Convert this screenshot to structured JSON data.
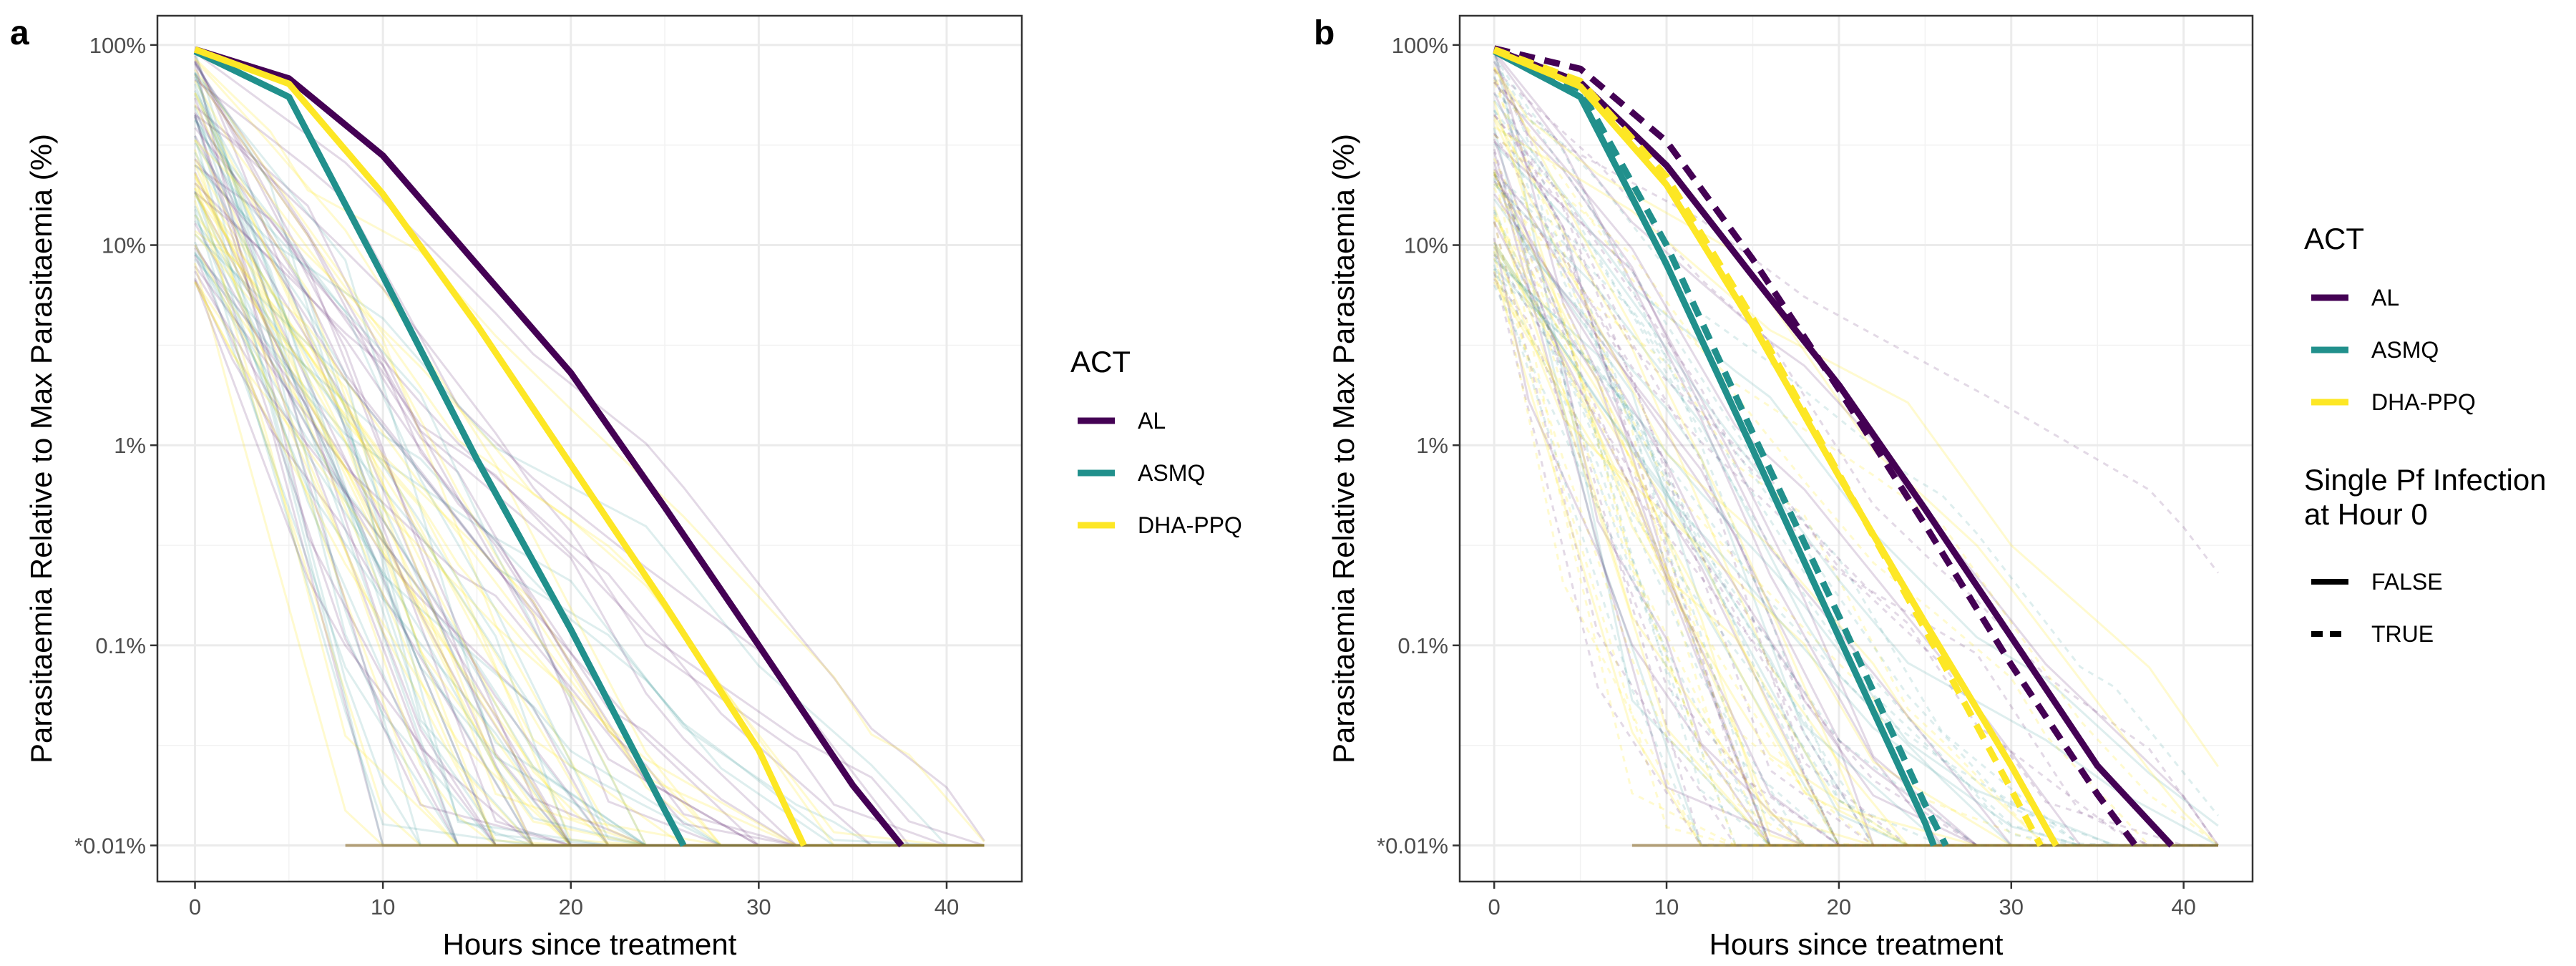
{
  "chart_data": [
    {
      "panel_label": "a",
      "type": "line",
      "xlabel": "Hours since treatment",
      "ylabel": "Parasitaemia Relative to Max Parasitaemia (%)",
      "x_ticks": [
        0,
        10,
        20,
        30,
        40
      ],
      "x_tick_labels": [
        "0",
        "10",
        "20",
        "30",
        "40"
      ],
      "y_scale": "log",
      "y_ticks": [
        100,
        10,
        1,
        0.1,
        0.01
      ],
      "y_tick_labels": [
        "100%",
        "10%",
        "1%",
        "0.1%",
        "*0.01%"
      ],
      "xlim": [
        -2,
        44
      ],
      "ylim": [
        0.0066,
        140
      ],
      "grid": true,
      "legend": {
        "title": "ACT",
        "position": "right",
        "entries": [
          {
            "label": "AL",
            "color": "#440154",
            "dash": false
          },
          {
            "label": "ASMQ",
            "color": "#21908C",
            "dash": false
          },
          {
            "label": "DHA-PPQ",
            "color": "#FDE725",
            "dash": false
          }
        ]
      },
      "series": [
        {
          "name": "AL",
          "color": "#440154",
          "dash": false,
          "x": [
            0,
            5,
            10,
            15,
            20,
            25,
            30,
            35,
            37.6
          ],
          "y": [
            95,
            68,
            28,
            8,
            2.3,
            0.49,
            0.1,
            0.02,
            0.01
          ]
        },
        {
          "name": "ASMQ",
          "color": "#21908C",
          "dash": false,
          "x": [
            0,
            5,
            10,
            15,
            20,
            25,
            26
          ],
          "y": [
            93,
            55,
            7,
            0.85,
            0.12,
            0.015,
            0.01
          ]
        },
        {
          "name": "DHA-PPQ",
          "color": "#FDE725",
          "dash": false,
          "x": [
            0,
            5,
            10,
            15,
            20,
            25,
            30,
            32.4
          ],
          "y": [
            95,
            64,
            18,
            4,
            0.8,
            0.16,
            0.03,
            0.01
          ]
        }
      ]
    },
    {
      "panel_label": "b",
      "type": "line",
      "xlabel": "Hours since treatment",
      "ylabel": "Parasitaemia Relative to Max Parasitaemia (%)",
      "x_ticks": [
        0,
        10,
        20,
        30,
        40
      ],
      "x_tick_labels": [
        "0",
        "10",
        "20",
        "30",
        "40"
      ],
      "y_scale": "log",
      "y_ticks": [
        100,
        10,
        1,
        0.1,
        0.01
      ],
      "y_tick_labels": [
        "100%",
        "10%",
        "1%",
        "0.1%",
        "*0.01%"
      ],
      "xlim": [
        -2,
        44
      ],
      "ylim": [
        0.0066,
        140
      ],
      "grid": true,
      "legend": {
        "title": "ACT",
        "position": "right",
        "entries": [
          {
            "label": "AL",
            "color": "#440154",
            "dash": false
          },
          {
            "label": "ASMQ",
            "color": "#21908C",
            "dash": false
          },
          {
            "label": "DHA-PPQ",
            "color": "#FDE725",
            "dash": false
          }
        ],
        "linetype_title": [
          "Single Pf Infection",
          "at Hour 0"
        ],
        "linetype_entries": [
          {
            "label": "FALSE",
            "color": "#000000",
            "dash": false
          },
          {
            "label": "TRUE",
            "color": "#000000",
            "dash": true
          }
        ]
      },
      "series": [
        {
          "name": "AL",
          "color": "#440154",
          "dash": false,
          "x": [
            0,
            5,
            10,
            15,
            20,
            25,
            30,
            35,
            39.3
          ],
          "y": [
            95,
            65,
            25,
            7,
            2.0,
            0.48,
            0.11,
            0.025,
            0.01
          ]
        },
        {
          "name": "AL",
          "color": "#440154",
          "dash": true,
          "x": [
            0,
            5,
            10,
            15,
            20,
            25,
            30,
            35,
            37.2
          ],
          "y": [
            96,
            76,
            33,
            8.5,
            1.9,
            0.4,
            0.08,
            0.018,
            0.01
          ]
        },
        {
          "name": "ASMQ",
          "color": "#21908C",
          "dash": false,
          "x": [
            0,
            5,
            10,
            15,
            20,
            25,
            25.5
          ],
          "y": [
            93,
            55,
            8,
            0.95,
            0.11,
            0.013,
            0.01
          ]
        },
        {
          "name": "ASMQ",
          "color": "#21908C",
          "dash": true,
          "x": [
            0,
            5,
            10,
            15,
            20,
            25,
            26.2
          ],
          "y": [
            94,
            60,
            10,
            1.15,
            0.14,
            0.016,
            0.01
          ]
        },
        {
          "name": "DHA-PPQ",
          "color": "#FDE725",
          "dash": false,
          "x": [
            0,
            5,
            10,
            15,
            20,
            25,
            30,
            32.6
          ],
          "y": [
            94,
            62,
            20,
            4,
            0.7,
            0.13,
            0.025,
            0.01
          ]
        },
        {
          "name": "DHA-PPQ",
          "color": "#FDE725",
          "dash": true,
          "x": [
            0,
            5,
            10,
            15,
            20,
            25,
            30,
            31.7
          ],
          "y": [
            95,
            66,
            22,
            4.3,
            0.72,
            0.12,
            0.019,
            0.01
          ]
        }
      ]
    }
  ]
}
